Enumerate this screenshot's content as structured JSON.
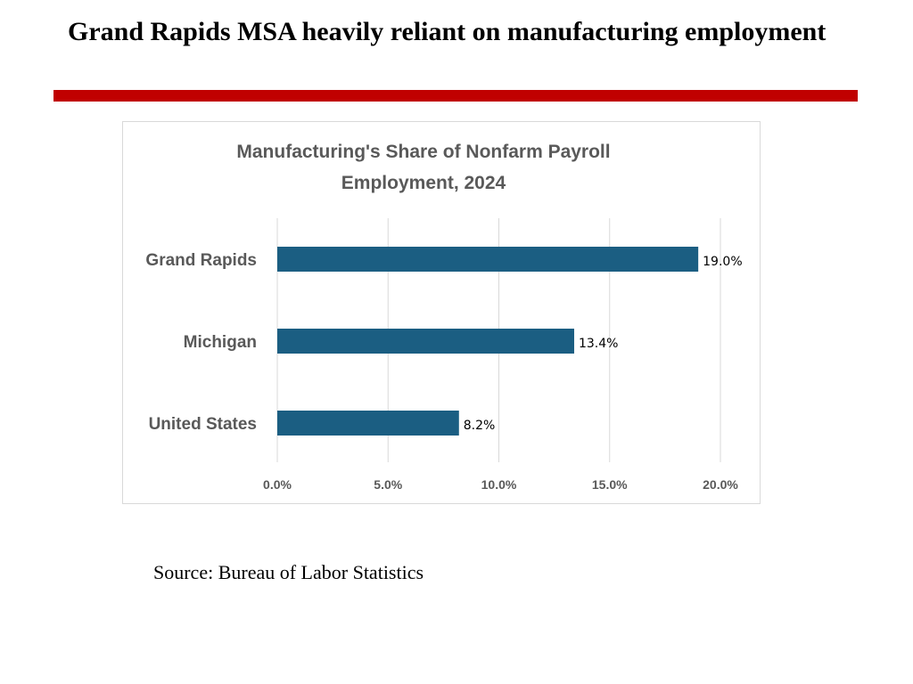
{
  "slide": {
    "title": "Grand Rapids MSA heavily reliant on manufacturing employment",
    "source": "Source: Bureau of Labor Statistics",
    "rule_color": "#c00000"
  },
  "chart_data": {
    "type": "bar",
    "orientation": "horizontal",
    "title_lines": [
      "Manufacturing's Share of Nonfarm Payroll",
      "Employment, 2024"
    ],
    "categories": [
      "Grand Rapids",
      "Michigan",
      "United States"
    ],
    "values": [
      19.0,
      13.4,
      8.2
    ],
    "data_labels": [
      "19.0%",
      "13.4%",
      "8.2%"
    ],
    "xlim": [
      0,
      20
    ],
    "xticks": [
      0,
      5,
      10,
      15,
      20
    ],
    "xtick_labels": [
      "0.0%",
      "5.0%",
      "10.0%",
      "15.0%",
      "20.0%"
    ],
    "xlabel": "",
    "ylabel": "",
    "grid": "vertical",
    "bar_color": "#1b5e82"
  }
}
